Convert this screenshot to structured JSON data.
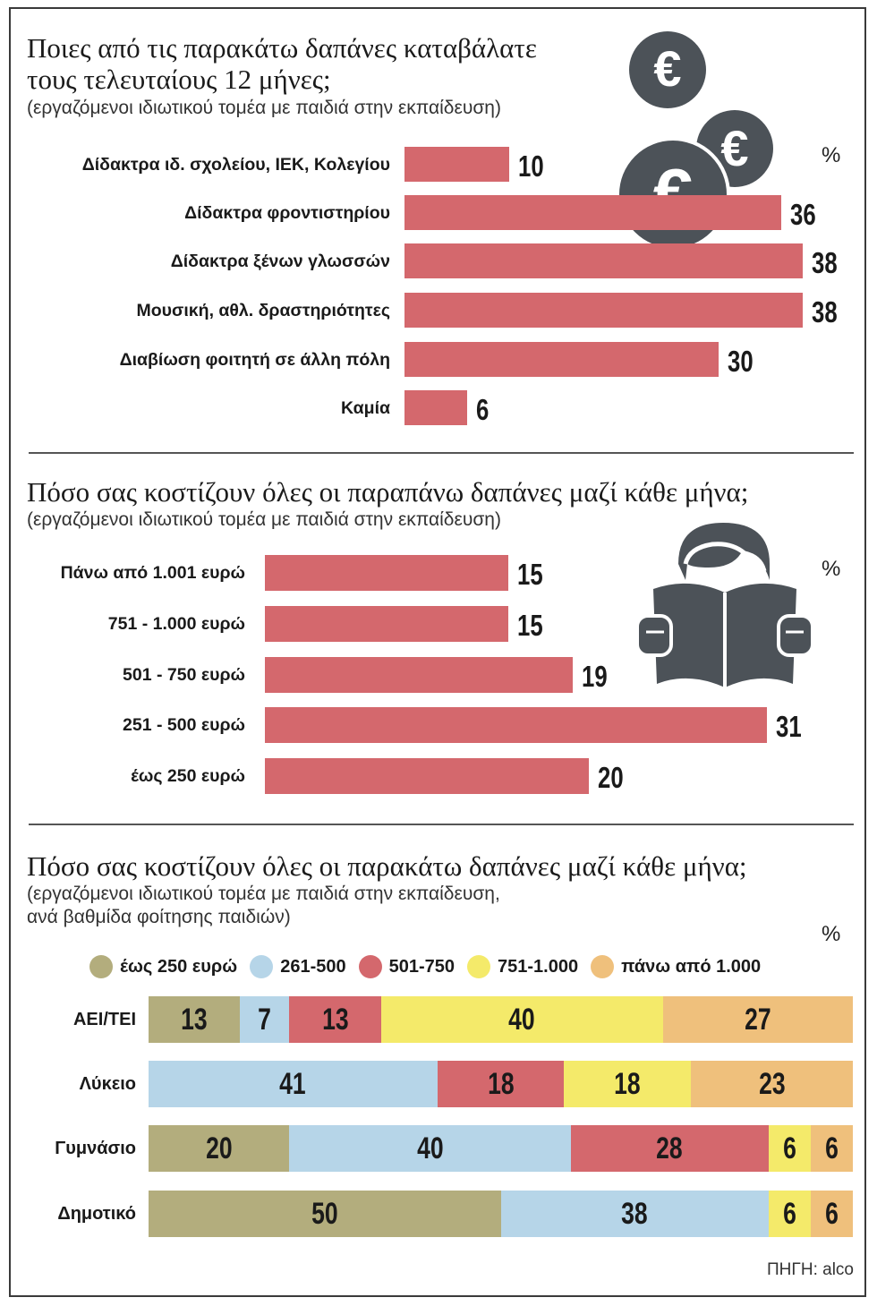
{
  "colors": {
    "bar_red": "#d4686d",
    "olive": "#b3ad7d",
    "light_blue": "#b6d5e8",
    "red": "#d4686d",
    "yellow": "#f4ea6a",
    "orange": "#efc07c",
    "icon_gray": "#4c5258"
  },
  "icons": [
    "euro-coin-icon",
    "euro-coin-icon",
    "euro-coin-icon",
    "reader-icon"
  ],
  "sections": [
    {
      "title_lines": [
        "Ποιες από τις παρακάτω δαπάνες καταβάλατε",
        "τους τελευταίους 12 μήνες;"
      ],
      "subtitle": "(εργαζόμενοι ιδιωτικού τομέα με παιδιά στην εκπαίδευση)",
      "unit": "%"
    },
    {
      "title_lines": [
        "Πόσο σας κοστίζουν όλες οι παραπάνω δαπάνες μαζί κάθε μήνα;"
      ],
      "subtitle": "(εργαζόμενοι ιδιωτικού τομέα με παιδιά στην εκπαίδευση)",
      "unit": "%"
    },
    {
      "title_lines": [
        "Πόσο σας κοστίζουν όλες οι παρακάτω δαπάνες μαζί κάθε μήνα;"
      ],
      "subtitle_lines": [
        "(εργαζόμενοι ιδιωτικού τομέα με παιδιά στην εκπαίδευση,",
        "ανά βαθμίδα φοίτησης παιδιών)"
      ],
      "unit": "%"
    }
  ],
  "chart_data": [
    {
      "type": "bar",
      "orientation": "horizontal",
      "categories": [
        "Δίδακτρα ιδ. σχολείου, ΙΕΚ, Κολεγίου",
        "Δίδακτρα φροντιστηρίου",
        "Δίδακτρα ξένων γλωσσών",
        "Μουσική, αθλ. δραστηριότητες",
        "Διαβίωση φοιτητή σε άλλη πόλη",
        "Καμία"
      ],
      "values": [
        10,
        36,
        38,
        38,
        30,
        6
      ],
      "title": "Ποιες από τις παρακάτω δαπάνες καταβάλατε τους τελευταίους 12 μήνες;",
      "ylabel": "%"
    },
    {
      "type": "bar",
      "orientation": "horizontal",
      "categories": [
        "Πάνω από 1.001 ευρώ",
        "751 - 1.000 ευρώ",
        "501 - 750 ευρώ",
        "251 - 500 ευρώ",
        "έως 250 ευρώ"
      ],
      "values": [
        15,
        15,
        19,
        31,
        20
      ],
      "title": "Πόσο σας κοστίζουν όλες οι παραπάνω δαπάνες μαζί κάθε μήνα;",
      "ylabel": "%"
    },
    {
      "type": "bar",
      "orientation": "horizontal",
      "stacked": true,
      "categories": [
        "ΑΕΙ/ΤΕΙ",
        "Λύκειο",
        "Γυμνάσιο",
        "Δημοτικό"
      ],
      "series": [
        {
          "name": "έως 250 ευρώ",
          "values": [
            13,
            0,
            20,
            50
          ]
        },
        {
          "name": "261-500",
          "values": [
            7,
            41,
            40,
            38
          ]
        },
        {
          "name": "501-750",
          "values": [
            13,
            18,
            28,
            0
          ]
        },
        {
          "name": "751-1.000",
          "values": [
            40,
            18,
            6,
            6
          ]
        },
        {
          "name": "πάνω από 1.000",
          "values": [
            27,
            23,
            6,
            6
          ]
        }
      ],
      "title": "Πόσο σας κοστίζουν όλες οι παρακάτω δαπάνες μαζί κάθε μήνα;",
      "ylabel": "%",
      "legend": "top"
    }
  ],
  "source": "ΠΗΓΗ: alco"
}
